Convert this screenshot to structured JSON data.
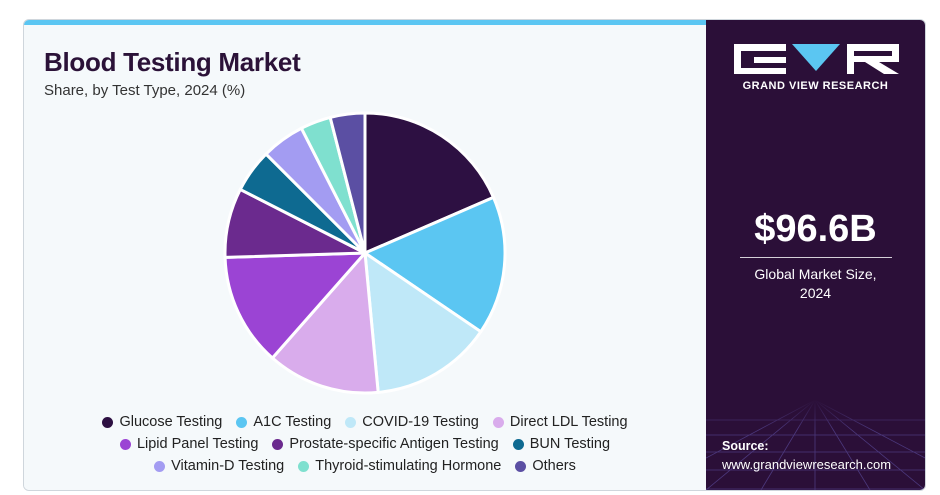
{
  "header": {
    "title": "Blood Testing Market",
    "subtitle": "Share, by Test Type, 2024 (%)"
  },
  "sidebar": {
    "brand": "GRAND VIEW RESEARCH",
    "market_value": "$96.6B",
    "market_label_line1": "Global Market Size,",
    "market_label_line2": "2024",
    "source_label": "Source:",
    "source_url": "www.grandviewresearch.com"
  },
  "colors": {
    "accent_bar": "#5bc6f2",
    "sidebar_bg": "#2b0f38",
    "title": "#2b1238"
  },
  "chart_data": {
    "type": "pie",
    "title": "Blood Testing Market",
    "subtitle": "Share, by Test Type, 2024 (%)",
    "legend_position": "bottom",
    "categories": [
      "Glucose Testing",
      "A1C Testing",
      "COVID-19 Testing",
      "Direct LDL Testing",
      "Lipid Panel Testing",
      "Prostate-specific Antigen Testing",
      "BUN Testing",
      "Vitamin-D Testing",
      "Thyroid-stimulating Hormone",
      "Others"
    ],
    "values": [
      18.5,
      16.0,
      14.0,
      13.0,
      13.0,
      8.0,
      5.0,
      5.0,
      3.5,
      4.0
    ],
    "colors": [
      "#2d1042",
      "#5bc6f2",
      "#bfe8f8",
      "#d9acec",
      "#9b44d4",
      "#6b2a8e",
      "#0e6a91",
      "#a39cf2",
      "#7fe0cf",
      "#5b4fa3"
    ]
  }
}
